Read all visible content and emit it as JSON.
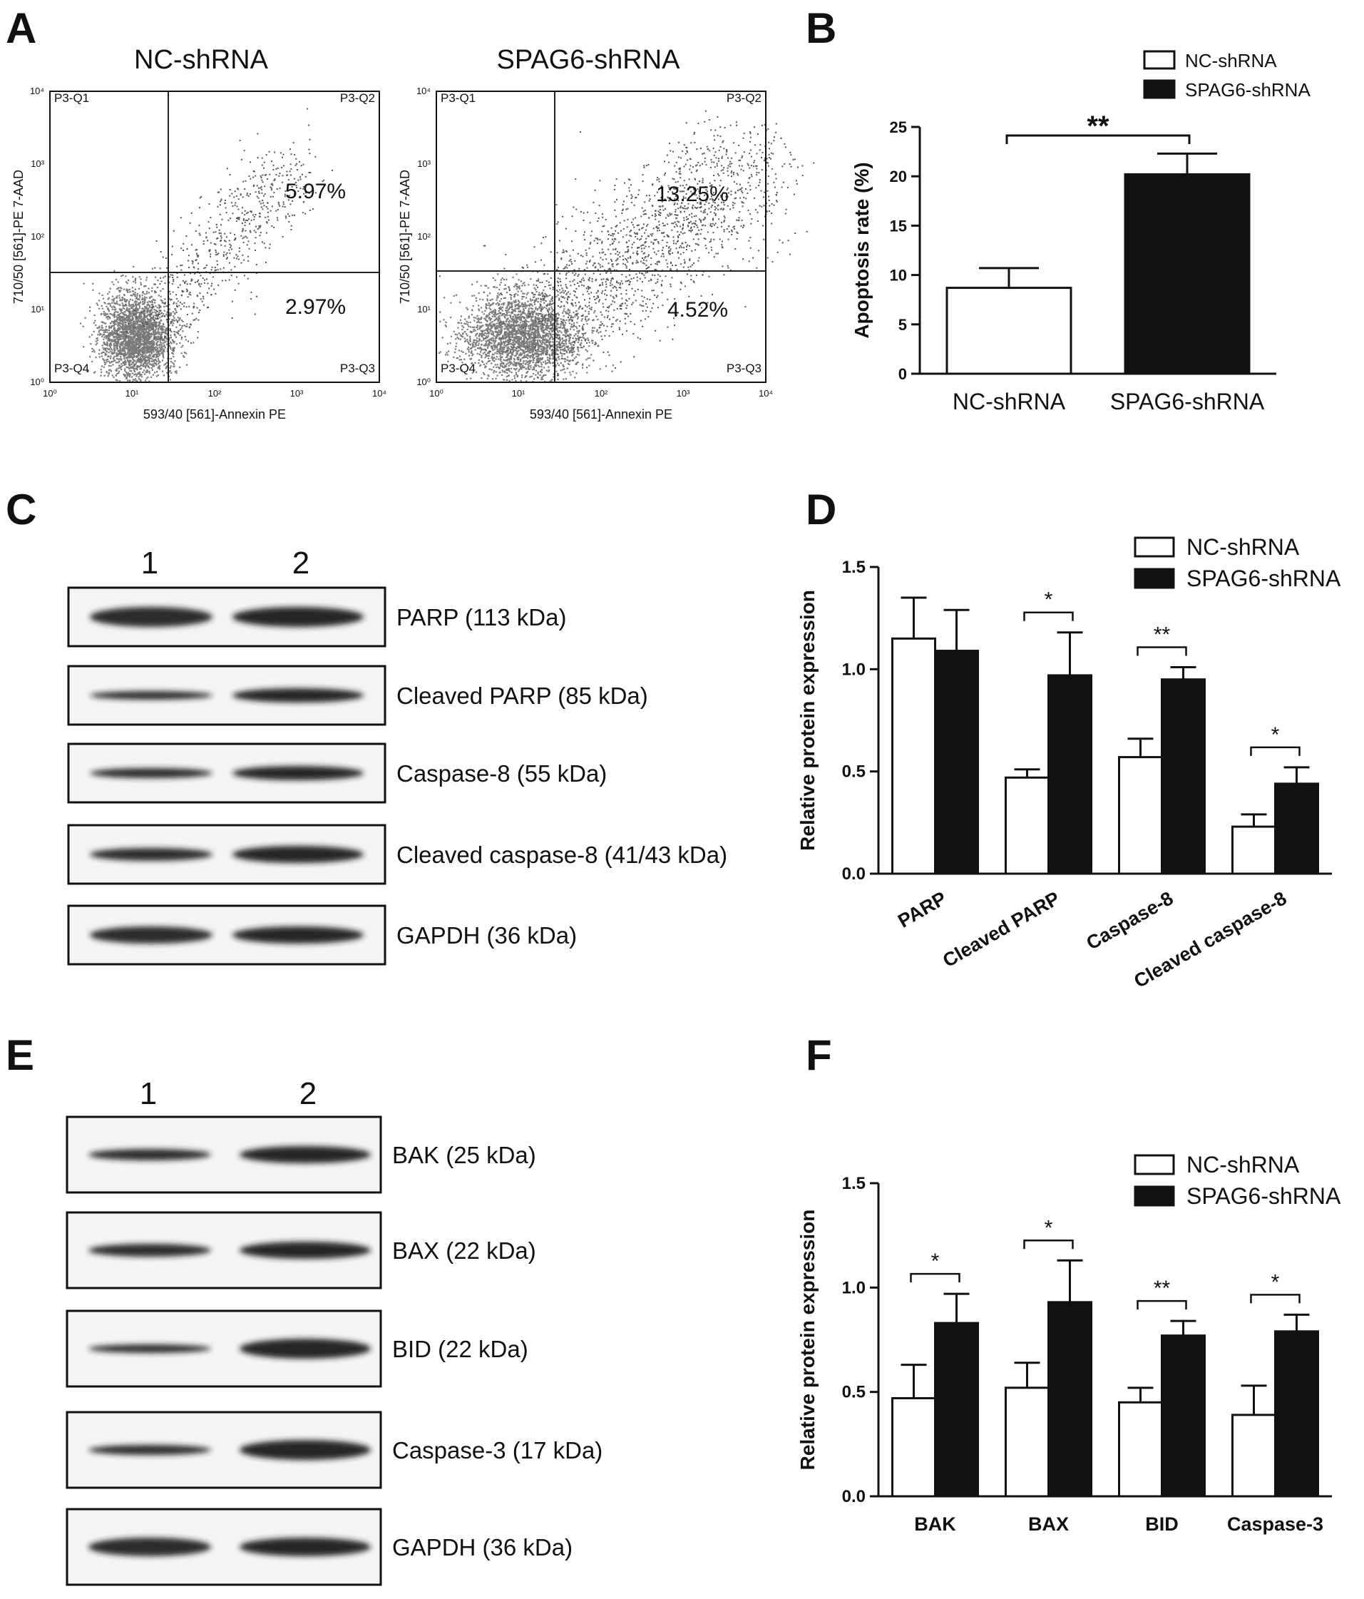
{
  "colors": {
    "background": "#ffffff",
    "nc_fill": "#ffffff",
    "spag6_fill": "#111111",
    "axis": "#111111",
    "scatter_dots": "#7a7a7a",
    "blot_band": "#1a1a1a"
  },
  "panels": {
    "A": "A",
    "B": "B",
    "C": "C",
    "D": "D",
    "E": "E",
    "F": "F"
  },
  "flow": {
    "ticks": [
      "10⁰",
      "10¹",
      "10²",
      "10³",
      "10⁴"
    ],
    "xlabel": "593/40 [561]-Annexin PE",
    "ylabel": "710/50 [561]-PE 7-AAD",
    "quadrants": [
      "P3-Q1",
      "P3-Q2",
      "P3-Q3",
      "P3-Q4"
    ],
    "plots": [
      {
        "title": "NC-shRNA",
        "q2": "5.97%",
        "q3": "2.97%"
      },
      {
        "title": "SPAG6-shRNA",
        "q2": "13.25%",
        "q3": "4.52%"
      }
    ]
  },
  "blots": {
    "C": {
      "lanes": [
        "1",
        "2"
      ],
      "bands": [
        "PARP (113 kDa)",
        "Cleaved PARP (85 kDa)",
        "Caspase-8 (55 kDa)",
        "Cleaved caspase-8 (41/43 kDa)",
        "GAPDH (36 kDa)"
      ]
    },
    "E": {
      "lanes": [
        "1",
        "2"
      ],
      "bands": [
        "BAK (25 kDa)",
        "BAX (22 kDa)",
        "BID (22 kDa)",
        "Caspase-3 (17 kDa)",
        "GAPDH (36 kDa)"
      ]
    }
  },
  "chart_data": [
    {
      "panel": "A",
      "type": "scatter",
      "subplots": [
        {
          "title": "NC-shRNA",
          "quadrant_percentages": {
            "P3-Q2": "5.97%",
            "P3-Q3": "2.97%"
          }
        },
        {
          "title": "SPAG6-shRNA",
          "quadrant_percentages": {
            "P3-Q2": "13.25%",
            "P3-Q3": "4.52%"
          }
        }
      ],
      "xlabel": "593/40 [561]-Annexin PE",
      "ylabel": "710/50 [561]-PE 7-AAD",
      "scale": "log",
      "xlim": [
        1,
        10000
      ],
      "ylim": [
        1,
        10000
      ]
    },
    {
      "panel": "B",
      "type": "bar",
      "categories": [
        "NC-shRNA",
        "SPAG6-shRNA"
      ],
      "values": [
        8.7,
        20.2
      ],
      "errors": [
        2.0,
        2.1
      ],
      "ylabel": "Apoptosis rate (%)",
      "ylim": [
        0,
        25
      ],
      "yticks": [
        "0",
        "5",
        "10",
        "15",
        "20",
        "25"
      ],
      "legend": [
        "NC-shRNA",
        "SPAG6-shRNA"
      ],
      "legend_position": "top",
      "significance": [
        {
          "between": [
            0,
            1
          ],
          "label": "**"
        }
      ]
    },
    {
      "panel": "D",
      "type": "bar",
      "categories": [
        "PARP",
        "Cleaved PARP",
        "Caspase-8",
        "Cleaved caspase-8"
      ],
      "series": [
        {
          "name": "NC-shRNA",
          "values": [
            1.15,
            0.47,
            0.57,
            0.23
          ],
          "errors": [
            0.2,
            0.04,
            0.09,
            0.06
          ]
        },
        {
          "name": "SPAG6-shRNA",
          "values": [
            1.09,
            0.97,
            0.95,
            0.44
          ],
          "errors": [
            0.2,
            0.21,
            0.06,
            0.08
          ]
        }
      ],
      "ylabel": "Relative protein expression",
      "ylim": [
        0,
        1.5
      ],
      "yticks": [
        "0.0",
        "0.5",
        "1.0",
        "1.5"
      ],
      "legend_position": "top-right",
      "significance": [
        "",
        "*",
        "**",
        "*"
      ]
    },
    {
      "panel": "F",
      "type": "bar",
      "categories": [
        "BAK",
        "BAX",
        "BID",
        "Caspase-3"
      ],
      "series": [
        {
          "name": "NC-shRNA",
          "values": [
            0.47,
            0.52,
            0.45,
            0.39
          ],
          "errors": [
            0.16,
            0.12,
            0.07,
            0.14
          ]
        },
        {
          "name": "SPAG6-shRNA",
          "values": [
            0.83,
            0.93,
            0.77,
            0.79
          ],
          "errors": [
            0.14,
            0.2,
            0.07,
            0.08
          ]
        }
      ],
      "ylabel": "Relative protein expression",
      "ylim": [
        0,
        1.5
      ],
      "yticks": [
        "0.0",
        "0.5",
        "1.0",
        "1.5"
      ],
      "legend_position": "top-right",
      "significance": [
        "*",
        "*",
        "**",
        "*"
      ]
    }
  ]
}
